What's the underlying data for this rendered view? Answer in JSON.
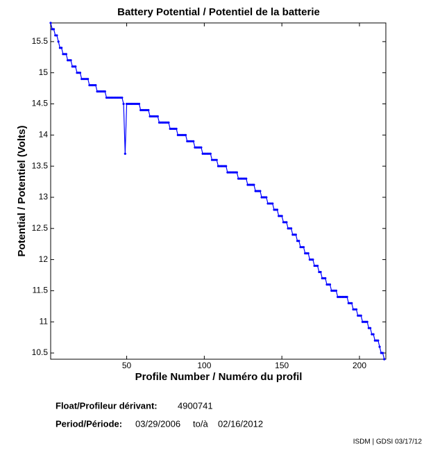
{
  "chart_data": {
    "type": "line",
    "title": "Battery Potential / Potentiel de la batterie",
    "xlabel": "Profile Number / Numéro du profil",
    "ylabel": "Potential / Potentiel (Volts)",
    "float_label": "Float/Profileur dérivant:",
    "float_id": "4900741",
    "period_label": "Period/Période:",
    "period_start": "03/29/2006",
    "period_sep": "to/à",
    "period_end": "02/16/2012",
    "credit": "ISDM | GDSI 03/17/12",
    "color": "#0000ff",
    "xlim": [
      1,
      217
    ],
    "ylim": [
      10.4,
      15.8
    ],
    "xticks": [
      50,
      100,
      150,
      200
    ],
    "yticks": [
      10.5,
      11,
      11.5,
      12,
      12.5,
      13,
      13.5,
      14,
      14.5,
      15,
      15.5
    ],
    "x": [
      1,
      2,
      3,
      4,
      5,
      6,
      7,
      8,
      9,
      10,
      11,
      12,
      13,
      14,
      15,
      16,
      17,
      18,
      19,
      20,
      21,
      22,
      23,
      24,
      25,
      26,
      27,
      28,
      29,
      30,
      31,
      32,
      33,
      34,
      35,
      36,
      37,
      38,
      39,
      40,
      41,
      42,
      43,
      44,
      45,
      46,
      47,
      48,
      49,
      50,
      51,
      52,
      53,
      54,
      55,
      56,
      57,
      58,
      59,
      60,
      61,
      62,
      63,
      64,
      65,
      66,
      67,
      68,
      69,
      70,
      71,
      72,
      73,
      74,
      75,
      76,
      77,
      78,
      79,
      80,
      81,
      82,
      83,
      84,
      85,
      86,
      87,
      88,
      89,
      90,
      91,
      92,
      93,
      94,
      95,
      96,
      97,
      98,
      99,
      100,
      101,
      102,
      103,
      104,
      105,
      106,
      107,
      108,
      109,
      110,
      111,
      112,
      113,
      114,
      115,
      116,
      117,
      118,
      119,
      120,
      121,
      122,
      123,
      124,
      125,
      126,
      127,
      128,
      129,
      130,
      131,
      132,
      133,
      134,
      135,
      136,
      137,
      138,
      139,
      140,
      141,
      142,
      143,
      144,
      145,
      146,
      147,
      148,
      149,
      150,
      151,
      152,
      153,
      154,
      155,
      156,
      157,
      158,
      159,
      160,
      161,
      162,
      163,
      164,
      165,
      166,
      167,
      168,
      169,
      170,
      171,
      172,
      173,
      174,
      175,
      176,
      177,
      178,
      179,
      180,
      181,
      182,
      183,
      184,
      185,
      186,
      187,
      188,
      189,
      190,
      191,
      192,
      193,
      194,
      195,
      196,
      197,
      198,
      199,
      200,
      201,
      202,
      203,
      204,
      205,
      206,
      207,
      208,
      209,
      210,
      211,
      212,
      213,
      214,
      215,
      216
    ],
    "values": [
      15.8,
      15.7,
      15.7,
      15.6,
      15.6,
      15.5,
      15.4,
      15.4,
      15.3,
      15.3,
      15.3,
      15.2,
      15.2,
      15.2,
      15.1,
      15.1,
      15.1,
      15,
      15,
      15,
      14.9,
      14.9,
      14.9,
      14.9,
      14.9,
      14.8,
      14.8,
      14.8,
      14.8,
      14.8,
      14.7,
      14.7,
      14.7,
      14.7,
      14.7,
      14.7,
      14.6,
      14.6,
      14.6,
      14.6,
      14.6,
      14.6,
      14.6,
      14.6,
      14.6,
      14.6,
      14.6,
      14.5,
      13.7,
      14.5,
      14.5,
      14.5,
      14.5,
      14.5,
      14.5,
      14.5,
      14.5,
      14.5,
      14.4,
      14.4,
      14.4,
      14.4,
      14.4,
      14.4,
      14.3,
      14.3,
      14.3,
      14.3,
      14.3,
      14.3,
      14.2,
      14.2,
      14.2,
      14.2,
      14.2,
      14.2,
      14.2,
      14.1,
      14.1,
      14.1,
      14.1,
      14.1,
      14,
      14,
      14,
      14,
      14,
      14,
      13.9,
      13.9,
      13.9,
      13.9,
      13.9,
      13.8,
      13.8,
      13.8,
      13.8,
      13.8,
      13.7,
      13.7,
      13.7,
      13.7,
      13.7,
      13.7,
      13.6,
      13.6,
      13.6,
      13.6,
      13.5,
      13.5,
      13.5,
      13.5,
      13.5,
      13.5,
      13.4,
      13.4,
      13.4,
      13.4,
      13.4,
      13.4,
      13.4,
      13.3,
      13.3,
      13.3,
      13.3,
      13.3,
      13.3,
      13.2,
      13.2,
      13.2,
      13.2,
      13.2,
      13.1,
      13.1,
      13.1,
      13.1,
      13,
      13,
      13,
      13,
      12.9,
      12.9,
      12.9,
      12.9,
      12.8,
      12.8,
      12.8,
      12.7,
      12.7,
      12.7,
      12.6,
      12.6,
      12.6,
      12.5,
      12.5,
      12.5,
      12.4,
      12.4,
      12.4,
      12.3,
      12.3,
      12.2,
      12.2,
      12.2,
      12.1,
      12.1,
      12.1,
      12,
      12,
      12,
      11.9,
      11.9,
      11.9,
      11.8,
      11.8,
      11.7,
      11.7,
      11.7,
      11.6,
      11.6,
      11.6,
      11.5,
      11.5,
      11.5,
      11.5,
      11.4,
      11.4,
      11.4,
      11.4,
      11.4,
      11.4,
      11.4,
      11.3,
      11.3,
      11.3,
      11.2,
      11.2,
      11.2,
      11.1,
      11.1,
      11.1,
      11,
      11,
      11,
      11,
      10.9,
      10.9,
      10.8,
      10.8,
      10.7,
      10.7,
      10.7,
      10.6,
      10.5,
      10.5,
      10.4
    ]
  }
}
